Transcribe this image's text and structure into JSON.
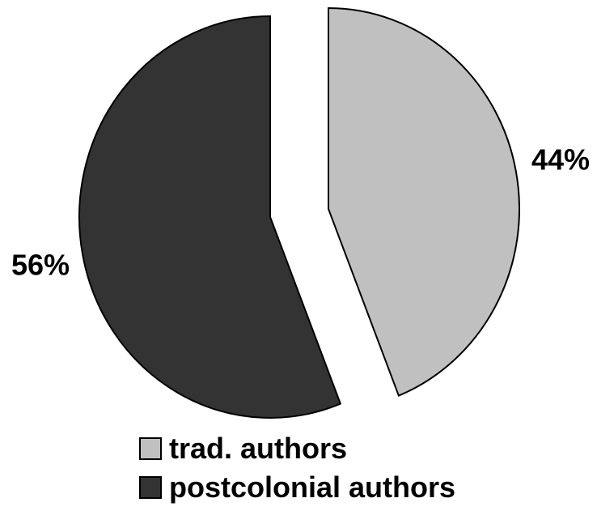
{
  "chart_data": {
    "type": "pie",
    "title": "",
    "slices": [
      {
        "label": "trad. authors",
        "value": 44,
        "data_label": "44%",
        "color": "#c0c0c0"
      },
      {
        "label": "postcolonial authors",
        "value": 56,
        "data_label": "56%",
        "color": "#333333"
      }
    ],
    "legend": {
      "placement": "bottom",
      "items": [
        {
          "label": "trad. authors",
          "color": "#c0c0c0"
        },
        {
          "label": "postcolonial authors",
          "color": "#333333"
        }
      ]
    }
  }
}
